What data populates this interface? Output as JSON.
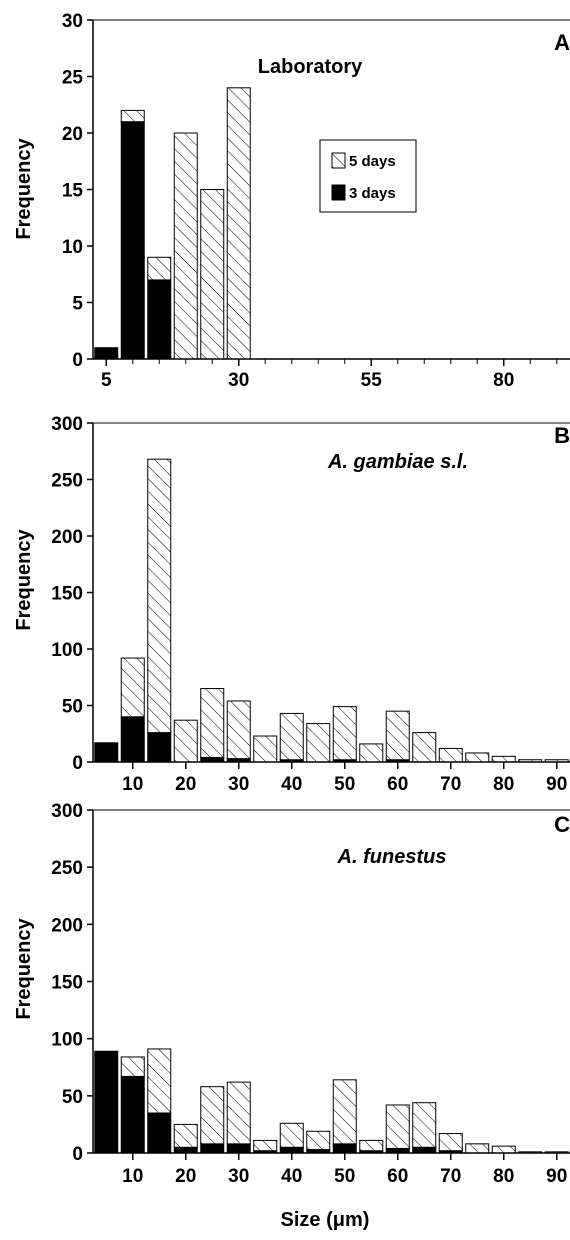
{
  "chart_data": [
    {
      "type": "bar",
      "panel": "A",
      "title": "Laboratory",
      "ylabel": "Frequency",
      "xlabel": "",
      "ylim": [
        0,
        30
      ],
      "yticks": [
        0,
        5,
        10,
        15,
        20,
        25,
        30
      ],
      "xlim": [
        2.5,
        92.5
      ],
      "xtick_labels": [
        5,
        30,
        55,
        80
      ],
      "minor_xticks": [
        10,
        15,
        20,
        25,
        35,
        40,
        45,
        50,
        60,
        65,
        70,
        75,
        85,
        90
      ],
      "legend": {
        "position": "upper-middle",
        "entries": [
          {
            "label": "5 days",
            "style": "hatched"
          },
          {
            "label": "3 days",
            "style": "solid"
          }
        ]
      },
      "stacked": true,
      "bins": [
        5,
        10,
        15,
        20,
        25,
        30
      ],
      "series": [
        {
          "name": "3 days",
          "style": "solid",
          "values": [
            1,
            21,
            7,
            0,
            0,
            0
          ]
        },
        {
          "name": "5 days",
          "style": "hatched",
          "values": [
            0,
            1,
            2,
            20,
            15,
            24
          ]
        }
      ]
    },
    {
      "type": "bar",
      "panel": "B",
      "title": "A. gambiae s.l.",
      "ylabel": "Frequency",
      "xlabel": "",
      "ylim": [
        0,
        300
      ],
      "yticks": [
        0,
        50,
        100,
        150,
        200,
        250,
        300
      ],
      "xlim": [
        2.5,
        92.5
      ],
      "xtick_labels": [
        10,
        20,
        30,
        40,
        50,
        60,
        70,
        80,
        90
      ],
      "stacked": true,
      "bins": [
        5,
        10,
        15,
        20,
        25,
        30,
        35,
        40,
        45,
        50,
        55,
        60,
        65,
        70,
        75,
        80,
        85,
        90
      ],
      "series": [
        {
          "name": "3 days",
          "style": "solid",
          "values": [
            17,
            40,
            26,
            0,
            4,
            3,
            0,
            2,
            0,
            2,
            0,
            2,
            0,
            0,
            0,
            0,
            0,
            0
          ]
        },
        {
          "name": "5 days",
          "style": "hatched",
          "values": [
            0,
            52,
            242,
            37,
            61,
            51,
            23,
            41,
            34,
            47,
            16,
            43,
            26,
            12,
            8,
            5,
            2,
            2
          ]
        }
      ]
    },
    {
      "type": "bar",
      "panel": "C",
      "title": "A. funestus",
      "ylabel": "Frequency",
      "xlabel": "Size (μm)",
      "ylim": [
        0,
        300
      ],
      "yticks": [
        0,
        50,
        100,
        150,
        200,
        250,
        300
      ],
      "xlim": [
        2.5,
        92.5
      ],
      "xtick_labels": [
        10,
        20,
        30,
        40,
        50,
        60,
        70,
        80,
        90
      ],
      "stacked": true,
      "bins": [
        5,
        10,
        15,
        20,
        25,
        30,
        35,
        40,
        45,
        50,
        55,
        60,
        65,
        70,
        75,
        80,
        85,
        90
      ],
      "series": [
        {
          "name": "3 days",
          "style": "solid",
          "values": [
            89,
            67,
            35,
            5,
            8,
            8,
            2,
            5,
            3,
            8,
            2,
            4,
            5,
            2,
            0,
            0,
            0,
            0
          ]
        },
        {
          "name": "5 days",
          "style": "hatched",
          "values": [
            0,
            17,
            56,
            20,
            50,
            54,
            9,
            21,
            16,
            56,
            9,
            38,
            39,
            15,
            8,
            6,
            1,
            1
          ]
        }
      ]
    }
  ],
  "colors": {
    "solid_fill": "#000000",
    "hatched_fill": "#ffffff",
    "axis": "#000000"
  }
}
